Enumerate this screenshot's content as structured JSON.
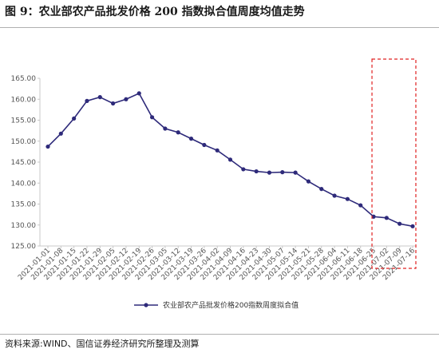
{
  "figure_title": "图 9：农业部农产品批发价格 200 指数拟合值周度均值走势",
  "source_note": "资料来源:WIND、国信证券经济研究所整理及测算",
  "colors": {
    "series": "#2e2a7a",
    "highlight_box": "#e02020",
    "axis": "#c8c8c8"
  },
  "chart_data": {
    "type": "line",
    "title": "",
    "xlabel": "",
    "ylabel": "",
    "ylim": [
      125,
      165
    ],
    "yticks": [
      125,
      130,
      135,
      140,
      145,
      150,
      155,
      160,
      165
    ],
    "ytick_format": 2,
    "grid": false,
    "legend_position": "bottom",
    "x": [
      "2021-01-01",
      "2021-01-08",
      "2021-01-15",
      "2021-01-22",
      "2021-01-29",
      "2021-02-05",
      "2021-02-12",
      "2021-02-19",
      "2021-02-26",
      "2021-03-05",
      "2021-03-12",
      "2021-03-19",
      "2021-03-26",
      "2021-04-02",
      "2021-04-09",
      "2021-04-16",
      "2021-04-23",
      "2021-04-30",
      "2021-05-07",
      "2021-05-14",
      "2021-05-21",
      "2021-05-28",
      "2021-06-04",
      "2021-06-11",
      "2021-06-18",
      "2021-06-25",
      "2021-07-02",
      "2021-07-09",
      "2021-07-16"
    ],
    "series": [
      {
        "name": "农业部农产品批发价格200指数周度拟合值",
        "values": [
          148.7,
          151.8,
          155.4,
          159.6,
          160.5,
          159.0,
          160.0,
          161.4,
          155.7,
          153.0,
          152.1,
          150.6,
          149.1,
          147.8,
          145.6,
          143.3,
          142.8,
          142.5,
          142.6,
          142.5,
          140.4,
          138.6,
          137.0,
          136.2,
          134.7,
          132.0,
          131.7,
          130.3,
          129.7
        ]
      }
    ],
    "highlight_range": [
      "2021-06-25",
      "2021-07-16"
    ]
  }
}
